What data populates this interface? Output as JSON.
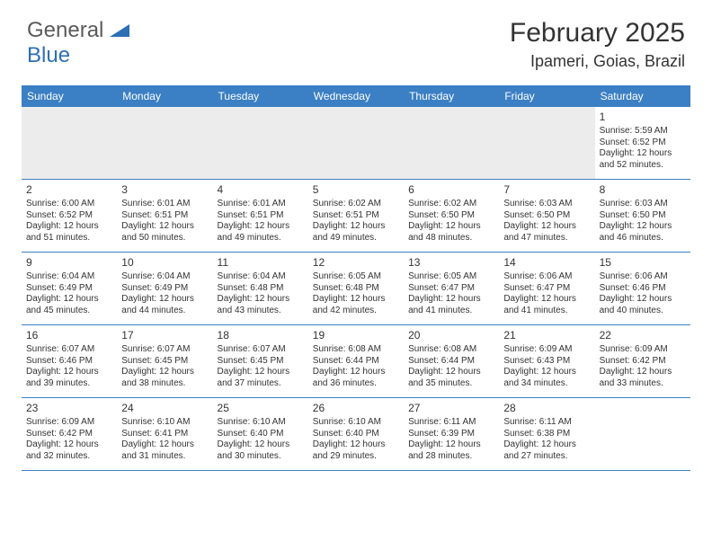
{
  "logo": {
    "word1": "General",
    "word2": "Blue"
  },
  "title": "February 2025",
  "location": "Ipameri, Goias, Brazil",
  "colors": {
    "header_bar": "#3b7fc4",
    "header_text": "#ffffff",
    "logo_blue": "#2d6fb5",
    "logo_gray": "#5a5a5a",
    "body_text": "#333333",
    "empty_row_bg": "#ececec",
    "row_border": "#3b7fc4",
    "background": "#ffffff"
  },
  "fonts": {
    "title_size_pt": 30,
    "location_size_pt": 18,
    "dayname_size_pt": 12,
    "daynum_size_pt": 12,
    "cell_size_pt": 10,
    "family": "Arial"
  },
  "daynames": [
    "Sunday",
    "Monday",
    "Tuesday",
    "Wednesday",
    "Thursday",
    "Friday",
    "Saturday"
  ],
  "weeks": [
    [
      null,
      null,
      null,
      null,
      null,
      null,
      {
        "n": "1",
        "sunrise": "Sunrise: 5:59 AM",
        "sunset": "Sunset: 6:52 PM",
        "daylight": "Daylight: 12 hours and 52 minutes."
      }
    ],
    [
      {
        "n": "2",
        "sunrise": "Sunrise: 6:00 AM",
        "sunset": "Sunset: 6:52 PM",
        "daylight": "Daylight: 12 hours and 51 minutes."
      },
      {
        "n": "3",
        "sunrise": "Sunrise: 6:01 AM",
        "sunset": "Sunset: 6:51 PM",
        "daylight": "Daylight: 12 hours and 50 minutes."
      },
      {
        "n": "4",
        "sunrise": "Sunrise: 6:01 AM",
        "sunset": "Sunset: 6:51 PM",
        "daylight": "Daylight: 12 hours and 49 minutes."
      },
      {
        "n": "5",
        "sunrise": "Sunrise: 6:02 AM",
        "sunset": "Sunset: 6:51 PM",
        "daylight": "Daylight: 12 hours and 49 minutes."
      },
      {
        "n": "6",
        "sunrise": "Sunrise: 6:02 AM",
        "sunset": "Sunset: 6:50 PM",
        "daylight": "Daylight: 12 hours and 48 minutes."
      },
      {
        "n": "7",
        "sunrise": "Sunrise: 6:03 AM",
        "sunset": "Sunset: 6:50 PM",
        "daylight": "Daylight: 12 hours and 47 minutes."
      },
      {
        "n": "8",
        "sunrise": "Sunrise: 6:03 AM",
        "sunset": "Sunset: 6:50 PM",
        "daylight": "Daylight: 12 hours and 46 minutes."
      }
    ],
    [
      {
        "n": "9",
        "sunrise": "Sunrise: 6:04 AM",
        "sunset": "Sunset: 6:49 PM",
        "daylight": "Daylight: 12 hours and 45 minutes."
      },
      {
        "n": "10",
        "sunrise": "Sunrise: 6:04 AM",
        "sunset": "Sunset: 6:49 PM",
        "daylight": "Daylight: 12 hours and 44 minutes."
      },
      {
        "n": "11",
        "sunrise": "Sunrise: 6:04 AM",
        "sunset": "Sunset: 6:48 PM",
        "daylight": "Daylight: 12 hours and 43 minutes."
      },
      {
        "n": "12",
        "sunrise": "Sunrise: 6:05 AM",
        "sunset": "Sunset: 6:48 PM",
        "daylight": "Daylight: 12 hours and 42 minutes."
      },
      {
        "n": "13",
        "sunrise": "Sunrise: 6:05 AM",
        "sunset": "Sunset: 6:47 PM",
        "daylight": "Daylight: 12 hours and 41 minutes."
      },
      {
        "n": "14",
        "sunrise": "Sunrise: 6:06 AM",
        "sunset": "Sunset: 6:47 PM",
        "daylight": "Daylight: 12 hours and 41 minutes."
      },
      {
        "n": "15",
        "sunrise": "Sunrise: 6:06 AM",
        "sunset": "Sunset: 6:46 PM",
        "daylight": "Daylight: 12 hours and 40 minutes."
      }
    ],
    [
      {
        "n": "16",
        "sunrise": "Sunrise: 6:07 AM",
        "sunset": "Sunset: 6:46 PM",
        "daylight": "Daylight: 12 hours and 39 minutes."
      },
      {
        "n": "17",
        "sunrise": "Sunrise: 6:07 AM",
        "sunset": "Sunset: 6:45 PM",
        "daylight": "Daylight: 12 hours and 38 minutes."
      },
      {
        "n": "18",
        "sunrise": "Sunrise: 6:07 AM",
        "sunset": "Sunset: 6:45 PM",
        "daylight": "Daylight: 12 hours and 37 minutes."
      },
      {
        "n": "19",
        "sunrise": "Sunrise: 6:08 AM",
        "sunset": "Sunset: 6:44 PM",
        "daylight": "Daylight: 12 hours and 36 minutes."
      },
      {
        "n": "20",
        "sunrise": "Sunrise: 6:08 AM",
        "sunset": "Sunset: 6:44 PM",
        "daylight": "Daylight: 12 hours and 35 minutes."
      },
      {
        "n": "21",
        "sunrise": "Sunrise: 6:09 AM",
        "sunset": "Sunset: 6:43 PM",
        "daylight": "Daylight: 12 hours and 34 minutes."
      },
      {
        "n": "22",
        "sunrise": "Sunrise: 6:09 AM",
        "sunset": "Sunset: 6:42 PM",
        "daylight": "Daylight: 12 hours and 33 minutes."
      }
    ],
    [
      {
        "n": "23",
        "sunrise": "Sunrise: 6:09 AM",
        "sunset": "Sunset: 6:42 PM",
        "daylight": "Daylight: 12 hours and 32 minutes."
      },
      {
        "n": "24",
        "sunrise": "Sunrise: 6:10 AM",
        "sunset": "Sunset: 6:41 PM",
        "daylight": "Daylight: 12 hours and 31 minutes."
      },
      {
        "n": "25",
        "sunrise": "Sunrise: 6:10 AM",
        "sunset": "Sunset: 6:40 PM",
        "daylight": "Daylight: 12 hours and 30 minutes."
      },
      {
        "n": "26",
        "sunrise": "Sunrise: 6:10 AM",
        "sunset": "Sunset: 6:40 PM",
        "daylight": "Daylight: 12 hours and 29 minutes."
      },
      {
        "n": "27",
        "sunrise": "Sunrise: 6:11 AM",
        "sunset": "Sunset: 6:39 PM",
        "daylight": "Daylight: 12 hours and 28 minutes."
      },
      {
        "n": "28",
        "sunrise": "Sunrise: 6:11 AM",
        "sunset": "Sunset: 6:38 PM",
        "daylight": "Daylight: 12 hours and 27 minutes."
      },
      null
    ]
  ]
}
